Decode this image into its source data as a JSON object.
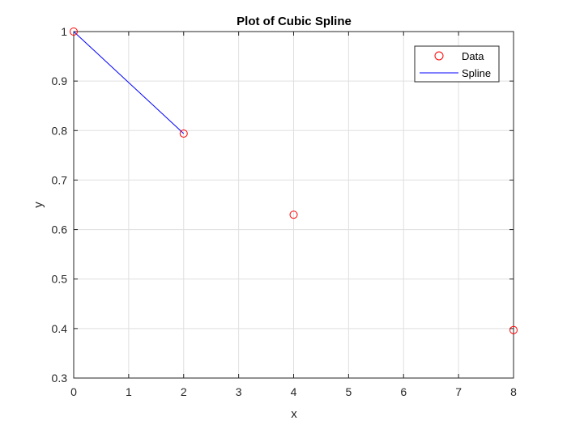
{
  "chart_data": {
    "type": "line",
    "title": "Plot of Cubic Spline",
    "xlabel": "x",
    "ylabel": "y",
    "xlim": [
      0,
      8
    ],
    "ylim": [
      0.3,
      1
    ],
    "xticks": [
      "0",
      "1",
      "2",
      "3",
      "4",
      "5",
      "6",
      "7",
      "8"
    ],
    "yticks": [
      "0.3",
      "0.4",
      "0.5",
      "0.6",
      "0.7",
      "0.8",
      "0.9",
      "1"
    ],
    "grid": true,
    "legend_position": "top-right",
    "series": [
      {
        "name": "Data",
        "style": "markers",
        "marker": "circle",
        "color": "#ff0000",
        "x": [
          0,
          2,
          4,
          8
        ],
        "y": [
          1.0,
          0.794,
          0.63,
          0.397
        ]
      },
      {
        "name": "Spline",
        "style": "line",
        "color": "#0000ff",
        "x": [
          0,
          2
        ],
        "y": [
          1.0,
          0.794
        ]
      }
    ]
  }
}
